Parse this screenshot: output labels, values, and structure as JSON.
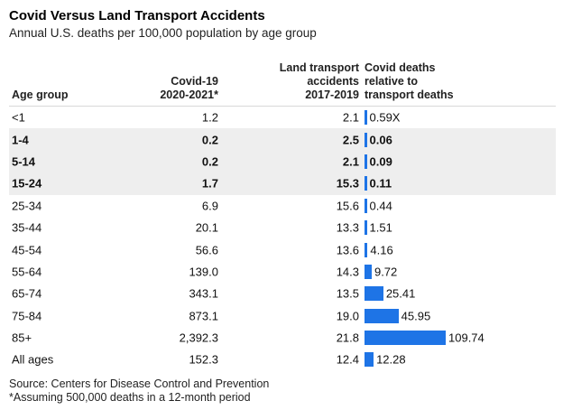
{
  "title": "Covid Versus Land Transport Accidents",
  "subtitle": "Annual U.S. deaths per 100,000 population by age group",
  "headers": {
    "age": "Age group",
    "covid": "Covid-19\n2020-2021*",
    "transport": "Land transport\naccidents\n2017-2019",
    "ratio": "Covid deaths\nrelative to\ntransport deaths"
  },
  "colors": {
    "bar": "#1e74e6",
    "shade": "#eeeeee"
  },
  "chart_data": {
    "type": "table",
    "title": "Covid Versus Land Transport Accidents",
    "subtitle": "Annual U.S. deaths per 100,000 population by age group",
    "columns": [
      "Age group",
      "Covid-19 2020-2021*",
      "Land transport accidents 2017-2019",
      "Covid deaths relative to transport deaths"
    ],
    "bar_column": "Covid deaths relative to transport deaths",
    "rows": [
      {
        "age": "<1",
        "covid": "1.2",
        "transport": "2.1",
        "ratio": 0.59,
        "ratio_label": "0.59X",
        "shaded": false,
        "bold": false
      },
      {
        "age": "1-4",
        "covid": "0.2",
        "transport": "2.5",
        "ratio": 0.06,
        "ratio_label": "0.06",
        "shaded": true,
        "bold": true
      },
      {
        "age": "5-14",
        "covid": "0.2",
        "transport": "2.1",
        "ratio": 0.09,
        "ratio_label": "0.09",
        "shaded": true,
        "bold": true
      },
      {
        "age": "15-24",
        "covid": "1.7",
        "transport": "15.3",
        "ratio": 0.11,
        "ratio_label": "0.11",
        "shaded": true,
        "bold": true
      },
      {
        "age": "25-34",
        "covid": "6.9",
        "transport": "15.6",
        "ratio": 0.44,
        "ratio_label": "0.44",
        "shaded": false,
        "bold": false
      },
      {
        "age": "35-44",
        "covid": "20.1",
        "transport": "13.3",
        "ratio": 1.51,
        "ratio_label": "1.51",
        "shaded": false,
        "bold": false
      },
      {
        "age": "45-54",
        "covid": "56.6",
        "transport": "13.6",
        "ratio": 4.16,
        "ratio_label": "4.16",
        "shaded": false,
        "bold": false
      },
      {
        "age": "55-64",
        "covid": "139.0",
        "transport": "14.3",
        "ratio": 9.72,
        "ratio_label": "9.72",
        "shaded": false,
        "bold": false
      },
      {
        "age": "65-74",
        "covid": "343.1",
        "transport": "13.5",
        "ratio": 25.41,
        "ratio_label": "25.41",
        "shaded": false,
        "bold": false
      },
      {
        "age": "75-84",
        "covid": "873.1",
        "transport": "19.0",
        "ratio": 45.95,
        "ratio_label": "45.95",
        "shaded": false,
        "bold": false
      },
      {
        "age": "85+",
        "covid": "2,392.3",
        "transport": "21.8",
        "ratio": 109.74,
        "ratio_label": "109.74",
        "shaded": false,
        "bold": false
      },
      {
        "age": "All ages",
        "covid": "152.3",
        "transport": "12.4",
        "ratio": 12.28,
        "ratio_label": "12.28",
        "shaded": false,
        "bold": false
      }
    ]
  },
  "footer": {
    "source": "Source: Centers for Disease Control and Prevention",
    "note": "*Assuming 500,000 deaths in a 12-month period"
  }
}
